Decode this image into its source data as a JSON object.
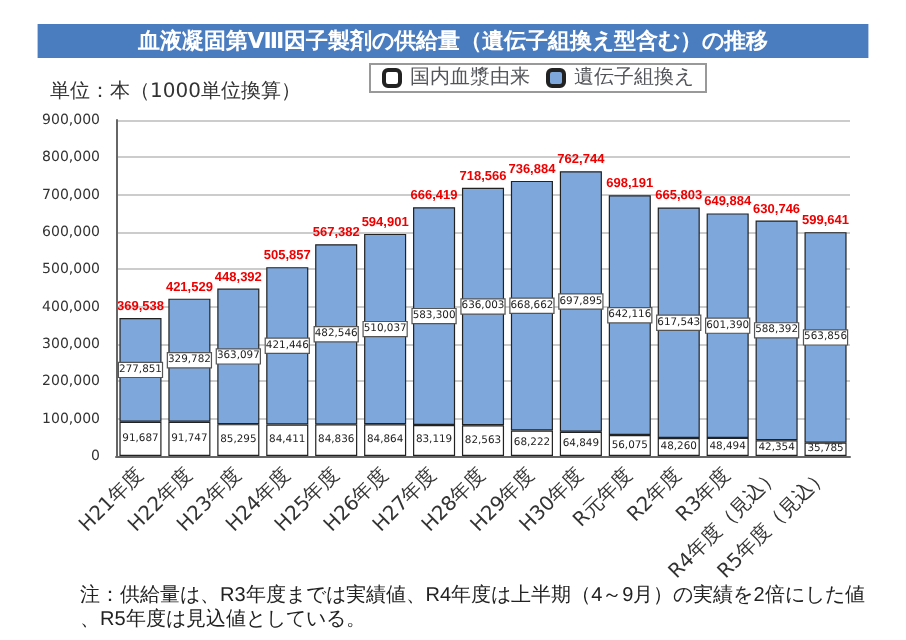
{
  "chart_data": {
    "type": "bar",
    "title": "血液凝固第Ⅷ因子製剤の供給量（遺伝子組換え型含む）の推移",
    "subtitle": "単位：本（1000単位換算）",
    "categories": [
      "H21年度",
      "H22年度",
      "H23年度",
      "H24年度",
      "H25年度",
      "H26年度",
      "H27年度",
      "H28年度",
      "H29年度",
      "H30年度",
      "R元年度",
      "R2年度",
      "R3年度",
      "R4年度（見込）",
      "R5年度（見込）"
    ],
    "series": [
      {
        "name": "国内血漿由来",
        "color": "#ffffff",
        "values": [
          91687,
          91747,
          85295,
          84411,
          84836,
          84864,
          83119,
          82563,
          68222,
          64849,
          56075,
          48260,
          48494,
          42354,
          35785
        ],
        "value_labels": [
          "91,687",
          "91,747",
          "85,295",
          "84,411",
          "84,836",
          "84,864",
          "83,119",
          "82,563",
          "68,222",
          "64,849",
          "56,075",
          "48,260",
          "48,494",
          "42,354",
          "35,785"
        ]
      },
      {
        "name": "遺伝子組換え",
        "color": "#7ea7dc",
        "values": [
          277851,
          329782,
          363097,
          421446,
          482546,
          510037,
          583300,
          636003,
          668662,
          697895,
          642116,
          617543,
          601390,
          588392,
          563856
        ],
        "value_labels": [
          "277,851",
          "329,782",
          "363,097",
          "421,446",
          "482,546",
          "510,037",
          "583,300",
          "636,003",
          "668,662",
          "697,895",
          "642,116",
          "617,543",
          "601,390",
          "588,392",
          "563,856"
        ]
      }
    ],
    "stacked": true,
    "totals": [
      "369,538",
      "421,529",
      "448,392",
      "505,857",
      "567,382",
      "594,901",
      "666,419",
      "718,566",
      "736,884",
      "762,744",
      "698,191",
      "665,803",
      "649,884",
      "630,746",
      "599,641"
    ],
    "ylim": [
      0,
      900000
    ],
    "yticks": [
      {
        "value": 0,
        "label": "0"
      },
      {
        "value": 100000,
        "label": "100,000"
      },
      {
        "value": 200000,
        "label": "200,000"
      },
      {
        "value": 300000,
        "label": "300,000"
      },
      {
        "value": 400000,
        "label": "400,000"
      },
      {
        "value": 500000,
        "label": "500,000"
      },
      {
        "value": 600000,
        "label": "600,000"
      },
      {
        "value": 700000,
        "label": "700,000"
      },
      {
        "value": 800000,
        "label": "800,000"
      },
      {
        "value": 900000,
        "label": "900,000"
      }
    ],
    "grid": "y",
    "legend": "top",
    "annotations": [
      "注：供給量は、R3年度までは実績値、R4年度は上半期（4～9月）の実績を2倍にした値、R5年度は見込値としている。"
    ]
  }
}
